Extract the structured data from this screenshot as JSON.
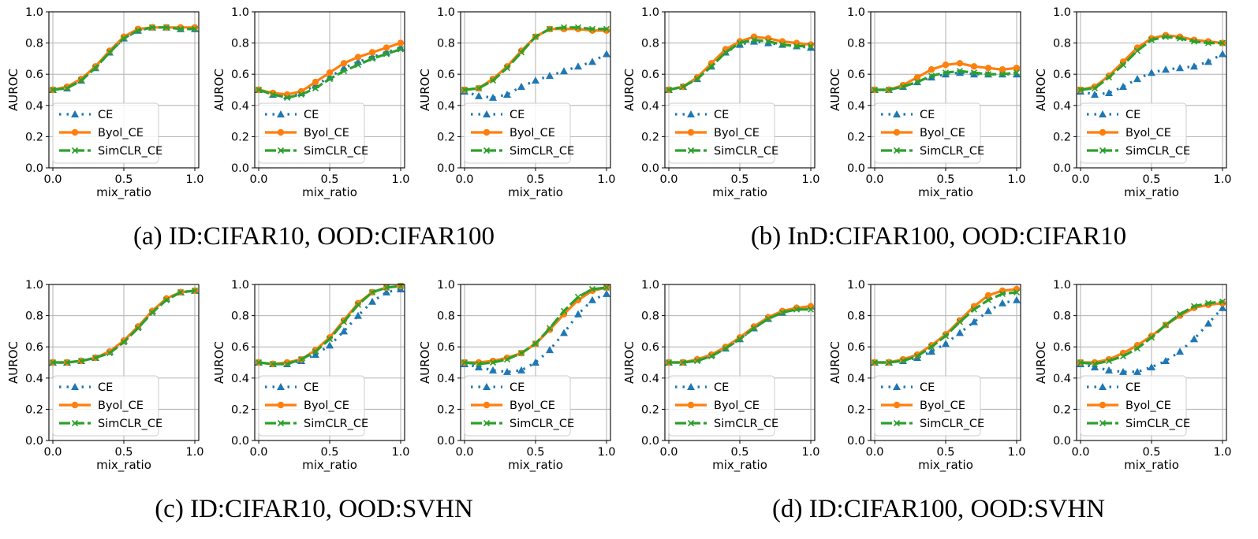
{
  "captions": {
    "a": "(a) ID:CIFAR10, OOD:CIFAR100",
    "b": "(b) InD:CIFAR100, OOD:CIFAR10",
    "c": "(c) ID:CIFAR10, OOD:SVHN",
    "d": "(d) ID:CIFAR100, OOD:SVHN"
  },
  "colors": {
    "CE": "#1f77b4",
    "Byol_CE": "#ff7f0e",
    "SimCLR_CE": "#2ca02c"
  },
  "chart_data": [
    {
      "type": "line",
      "xlabel": "mix_ratio",
      "ylabel": "AUROC",
      "ylim": [
        0,
        1
      ],
      "xlim": [
        0,
        1
      ],
      "legend": "lower-left",
      "grid": true,
      "x": [
        0,
        0.1,
        0.2,
        0.3,
        0.4,
        0.5,
        0.6,
        0.7,
        0.8,
        0.9,
        1.0
      ],
      "series": [
        {
          "name": "CE",
          "values": [
            0.5,
            0.51,
            0.56,
            0.64,
            0.74,
            0.83,
            0.88,
            0.9,
            0.9,
            0.89,
            0.89
          ]
        },
        {
          "name": "Byol_CE",
          "values": [
            0.5,
            0.52,
            0.57,
            0.65,
            0.75,
            0.84,
            0.89,
            0.9,
            0.9,
            0.9,
            0.9
          ]
        },
        {
          "name": "SimCLR_CE",
          "values": [
            0.5,
            0.51,
            0.56,
            0.64,
            0.74,
            0.83,
            0.88,
            0.9,
            0.9,
            0.89,
            0.89
          ]
        }
      ]
    },
    {
      "type": "line",
      "xlabel": "mix_ratio",
      "ylabel": "AUROC",
      "ylim": [
        0,
        1
      ],
      "xlim": [
        0,
        1
      ],
      "legend": "lower-left",
      "grid": true,
      "x": [
        0,
        0.1,
        0.2,
        0.3,
        0.4,
        0.5,
        0.6,
        0.7,
        0.8,
        0.9,
        1.0
      ],
      "series": [
        {
          "name": "CE",
          "values": [
            0.5,
            0.47,
            0.46,
            0.48,
            0.53,
            0.58,
            0.64,
            0.68,
            0.71,
            0.74,
            0.77
          ]
        },
        {
          "name": "Byol_CE",
          "values": [
            0.5,
            0.48,
            0.47,
            0.49,
            0.55,
            0.61,
            0.67,
            0.71,
            0.74,
            0.77,
            0.8
          ]
        },
        {
          "name": "SimCLR_CE",
          "values": [
            0.5,
            0.47,
            0.45,
            0.47,
            0.51,
            0.57,
            0.62,
            0.66,
            0.7,
            0.73,
            0.76
          ]
        }
      ]
    },
    {
      "type": "line",
      "xlabel": "mix_ratio",
      "ylabel": "AUROC",
      "ylim": [
        0,
        1
      ],
      "xlim": [
        0,
        1
      ],
      "legend": "lower-left",
      "grid": true,
      "x": [
        0,
        0.1,
        0.2,
        0.3,
        0.4,
        0.5,
        0.6,
        0.7,
        0.8,
        0.9,
        1.0
      ],
      "series": [
        {
          "name": "CE",
          "values": [
            0.49,
            0.46,
            0.45,
            0.47,
            0.52,
            0.56,
            0.59,
            0.62,
            0.65,
            0.68,
            0.73
          ]
        },
        {
          "name": "Byol_CE",
          "values": [
            0.5,
            0.51,
            0.57,
            0.65,
            0.75,
            0.84,
            0.89,
            0.89,
            0.89,
            0.88,
            0.88
          ]
        },
        {
          "name": "SimCLR_CE",
          "values": [
            0.5,
            0.51,
            0.56,
            0.64,
            0.74,
            0.84,
            0.89,
            0.9,
            0.9,
            0.89,
            0.89
          ]
        }
      ]
    },
    {
      "type": "line",
      "xlabel": "mix_ratio",
      "ylabel": "AUROC",
      "ylim": [
        0,
        1
      ],
      "xlim": [
        0,
        1
      ],
      "legend": "lower-left",
      "grid": true,
      "x": [
        0,
        0.1,
        0.2,
        0.3,
        0.4,
        0.5,
        0.6,
        0.7,
        0.8,
        0.9,
        1.0
      ],
      "series": [
        {
          "name": "CE",
          "values": [
            0.5,
            0.52,
            0.57,
            0.65,
            0.74,
            0.79,
            0.81,
            0.8,
            0.79,
            0.78,
            0.77
          ]
        },
        {
          "name": "Byol_CE",
          "values": [
            0.5,
            0.52,
            0.58,
            0.67,
            0.76,
            0.81,
            0.84,
            0.83,
            0.81,
            0.8,
            0.79
          ]
        },
        {
          "name": "SimCLR_CE",
          "values": [
            0.5,
            0.52,
            0.57,
            0.65,
            0.74,
            0.8,
            0.82,
            0.81,
            0.79,
            0.78,
            0.78
          ]
        }
      ]
    },
    {
      "type": "line",
      "xlabel": "mix_ratio",
      "ylabel": "AUROC",
      "ylim": [
        0,
        1
      ],
      "xlim": [
        0,
        1
      ],
      "legend": "lower-left",
      "grid": true,
      "x": [
        0,
        0.1,
        0.2,
        0.3,
        0.4,
        0.5,
        0.6,
        0.7,
        0.8,
        0.9,
        1.0
      ],
      "series": [
        {
          "name": "CE",
          "values": [
            0.5,
            0.5,
            0.52,
            0.55,
            0.58,
            0.6,
            0.61,
            0.6,
            0.6,
            0.6,
            0.6
          ]
        },
        {
          "name": "Byol_CE",
          "values": [
            0.5,
            0.5,
            0.53,
            0.58,
            0.63,
            0.66,
            0.67,
            0.65,
            0.64,
            0.63,
            0.64
          ]
        },
        {
          "name": "SimCLR_CE",
          "values": [
            0.5,
            0.5,
            0.52,
            0.55,
            0.59,
            0.61,
            0.62,
            0.61,
            0.6,
            0.6,
            0.61
          ]
        }
      ]
    },
    {
      "type": "line",
      "xlabel": "mix_ratio",
      "ylabel": "AUROC",
      "ylim": [
        0,
        1
      ],
      "xlim": [
        0,
        1
      ],
      "legend": "lower-left",
      "grid": true,
      "x": [
        0,
        0.1,
        0.2,
        0.3,
        0.4,
        0.5,
        0.6,
        0.7,
        0.8,
        0.9,
        1.0
      ],
      "series": [
        {
          "name": "CE",
          "values": [
            0.49,
            0.47,
            0.48,
            0.52,
            0.57,
            0.61,
            0.63,
            0.64,
            0.65,
            0.68,
            0.73
          ]
        },
        {
          "name": "Byol_CE",
          "values": [
            0.5,
            0.52,
            0.59,
            0.68,
            0.77,
            0.83,
            0.85,
            0.84,
            0.82,
            0.81,
            0.8
          ]
        },
        {
          "name": "SimCLR_CE",
          "values": [
            0.5,
            0.51,
            0.58,
            0.66,
            0.75,
            0.82,
            0.84,
            0.83,
            0.81,
            0.8,
            0.8
          ]
        }
      ]
    },
    {
      "type": "line",
      "xlabel": "mix_ratio",
      "ylabel": "AUROC",
      "ylim": [
        0,
        1
      ],
      "xlim": [
        0,
        1
      ],
      "legend": "lower-left",
      "grid": true,
      "x": [
        0,
        0.1,
        0.2,
        0.3,
        0.4,
        0.5,
        0.6,
        0.7,
        0.8,
        0.9,
        1.0
      ],
      "series": [
        {
          "name": "CE",
          "values": [
            0.5,
            0.5,
            0.51,
            0.53,
            0.57,
            0.64,
            0.73,
            0.83,
            0.91,
            0.95,
            0.96
          ]
        },
        {
          "name": "Byol_CE",
          "values": [
            0.5,
            0.5,
            0.51,
            0.53,
            0.57,
            0.64,
            0.73,
            0.83,
            0.91,
            0.95,
            0.96
          ]
        },
        {
          "name": "SimCLR_CE",
          "values": [
            0.5,
            0.5,
            0.51,
            0.53,
            0.56,
            0.63,
            0.72,
            0.82,
            0.9,
            0.95,
            0.96
          ]
        }
      ]
    },
    {
      "type": "line",
      "xlabel": "mix_ratio",
      "ylabel": "AUROC",
      "ylim": [
        0,
        1
      ],
      "xlim": [
        0,
        1
      ],
      "legend": "lower-left",
      "grid": true,
      "x": [
        0,
        0.1,
        0.2,
        0.3,
        0.4,
        0.5,
        0.6,
        0.7,
        0.8,
        0.9,
        1.0
      ],
      "series": [
        {
          "name": "CE",
          "values": [
            0.5,
            0.49,
            0.49,
            0.51,
            0.55,
            0.61,
            0.7,
            0.8,
            0.89,
            0.95,
            0.97
          ]
        },
        {
          "name": "Byol_CE",
          "values": [
            0.5,
            0.49,
            0.5,
            0.52,
            0.58,
            0.66,
            0.77,
            0.88,
            0.95,
            0.98,
            0.99
          ]
        },
        {
          "name": "SimCLR_CE",
          "values": [
            0.5,
            0.49,
            0.49,
            0.52,
            0.57,
            0.65,
            0.76,
            0.87,
            0.95,
            0.98,
            0.99
          ]
        }
      ]
    },
    {
      "type": "line",
      "xlabel": "mix_ratio",
      "ylabel": "AUROC",
      "ylim": [
        0,
        1
      ],
      "xlim": [
        0,
        1
      ],
      "legend": "lower-left",
      "grid": true,
      "x": [
        0,
        0.1,
        0.2,
        0.3,
        0.4,
        0.5,
        0.6,
        0.7,
        0.8,
        0.9,
        1.0
      ],
      "series": [
        {
          "name": "CE",
          "values": [
            0.49,
            0.47,
            0.45,
            0.44,
            0.45,
            0.5,
            0.58,
            0.69,
            0.81,
            0.9,
            0.94
          ]
        },
        {
          "name": "Byol_CE",
          "values": [
            0.5,
            0.5,
            0.51,
            0.53,
            0.56,
            0.62,
            0.71,
            0.81,
            0.9,
            0.96,
            0.98
          ]
        },
        {
          "name": "SimCLR_CE",
          "values": [
            0.5,
            0.49,
            0.5,
            0.52,
            0.56,
            0.62,
            0.72,
            0.83,
            0.92,
            0.97,
            0.98
          ]
        }
      ]
    },
    {
      "type": "line",
      "xlabel": "mix_ratio",
      "ylabel": "AUROC",
      "ylim": [
        0,
        1
      ],
      "xlim": [
        0,
        1
      ],
      "legend": "lower-left",
      "grid": true,
      "x": [
        0,
        0.1,
        0.2,
        0.3,
        0.4,
        0.5,
        0.6,
        0.7,
        0.8,
        0.9,
        1.0
      ],
      "series": [
        {
          "name": "CE",
          "values": [
            0.5,
            0.5,
            0.52,
            0.55,
            0.59,
            0.65,
            0.72,
            0.78,
            0.82,
            0.85,
            0.86
          ]
        },
        {
          "name": "Byol_CE",
          "values": [
            0.5,
            0.5,
            0.52,
            0.55,
            0.6,
            0.66,
            0.73,
            0.79,
            0.83,
            0.85,
            0.86
          ]
        },
        {
          "name": "SimCLR_CE",
          "values": [
            0.5,
            0.5,
            0.51,
            0.54,
            0.59,
            0.65,
            0.72,
            0.78,
            0.82,
            0.84,
            0.84
          ]
        }
      ]
    },
    {
      "type": "line",
      "xlabel": "mix_ratio",
      "ylabel": "AUROC",
      "ylim": [
        0,
        1
      ],
      "xlim": [
        0,
        1
      ],
      "legend": "lower-left",
      "grid": true,
      "x": [
        0,
        0.1,
        0.2,
        0.3,
        0.4,
        0.5,
        0.6,
        0.7,
        0.8,
        0.9,
        1.0
      ],
      "series": [
        {
          "name": "CE",
          "values": [
            0.5,
            0.5,
            0.51,
            0.53,
            0.57,
            0.62,
            0.69,
            0.76,
            0.83,
            0.88,
            0.9
          ]
        },
        {
          "name": "Byol_CE",
          "values": [
            0.5,
            0.5,
            0.52,
            0.55,
            0.61,
            0.68,
            0.77,
            0.86,
            0.93,
            0.96,
            0.97
          ]
        },
        {
          "name": "SimCLR_CE",
          "values": [
            0.5,
            0.5,
            0.51,
            0.54,
            0.6,
            0.67,
            0.76,
            0.84,
            0.9,
            0.94,
            0.95
          ]
        }
      ]
    },
    {
      "type": "line",
      "xlabel": "mix_ratio",
      "ylabel": "AUROC",
      "ylim": [
        0,
        1
      ],
      "xlim": [
        0,
        1
      ],
      "legend": "lower-left",
      "grid": true,
      "x": [
        0,
        0.1,
        0.2,
        0.3,
        0.4,
        0.5,
        0.6,
        0.7,
        0.8,
        0.9,
        1.0
      ],
      "series": [
        {
          "name": "CE",
          "values": [
            0.49,
            0.47,
            0.45,
            0.44,
            0.44,
            0.47,
            0.51,
            0.57,
            0.65,
            0.75,
            0.85
          ]
        },
        {
          "name": "Byol_CE",
          "values": [
            0.5,
            0.5,
            0.52,
            0.56,
            0.61,
            0.67,
            0.74,
            0.8,
            0.85,
            0.87,
            0.88
          ]
        },
        {
          "name": "SimCLR_CE",
          "values": [
            0.5,
            0.49,
            0.51,
            0.54,
            0.59,
            0.66,
            0.74,
            0.81,
            0.86,
            0.88,
            0.89
          ]
        }
      ]
    }
  ]
}
